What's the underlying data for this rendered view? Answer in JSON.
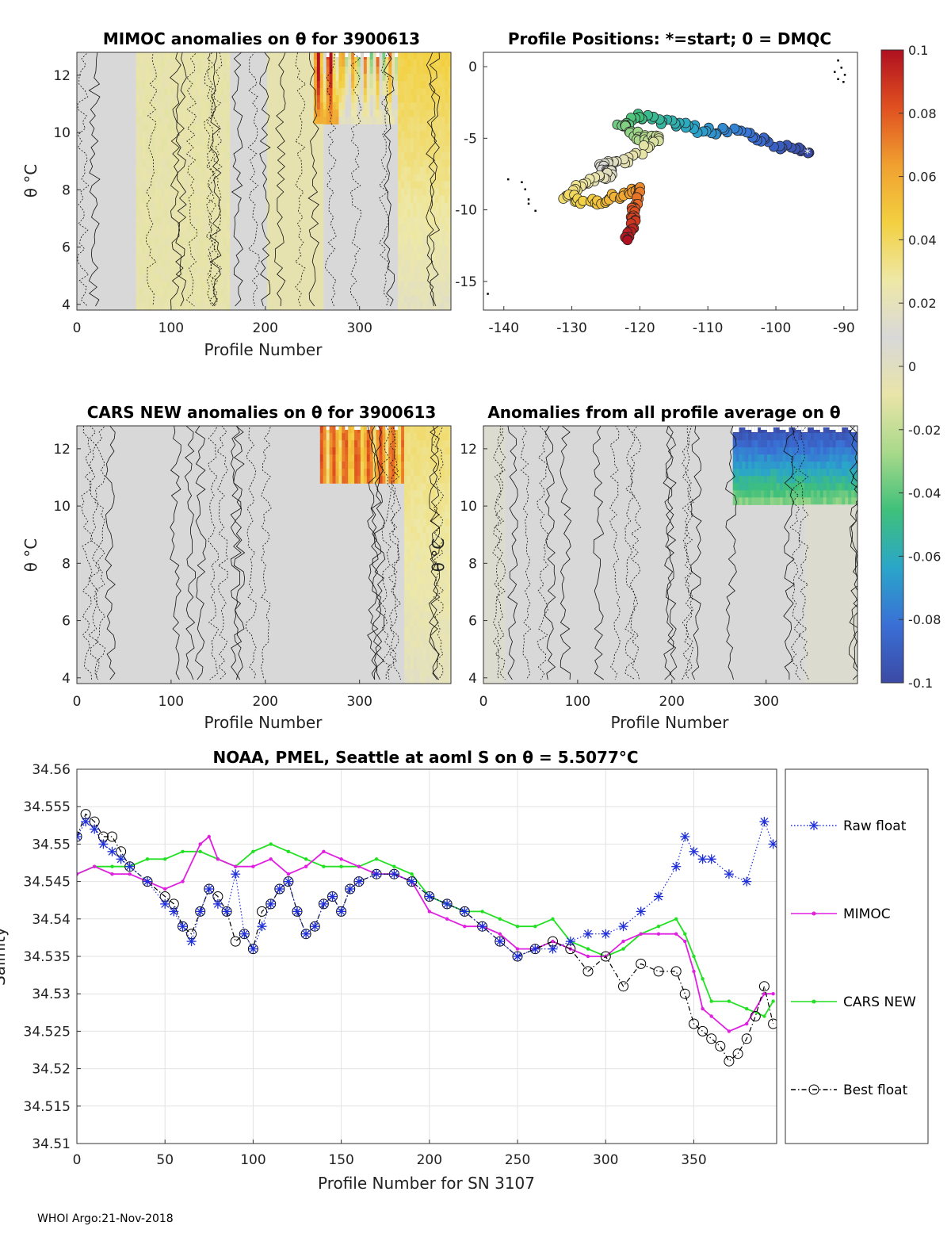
{
  "footer": "WHOI Argo:21-Nov-2018",
  "colors": {
    "raw": "#1f2fd8",
    "mimoc": "#e020e0",
    "cars": "#22e022",
    "best": "#000000",
    "neutral": "#d6d6d6"
  },
  "colormap": {
    "name": "parula-like diverging",
    "stops": [
      "#3b4aa5",
      "#3a6fd6",
      "#2aa6c9",
      "#3fc07a",
      "#a8d98a",
      "#e9e4a8",
      "#d8d8d8",
      "#eee8a6",
      "#f3d040",
      "#f0a030",
      "#e05020",
      "#b01020"
    ],
    "range": [
      -0.1,
      0.1
    ],
    "ticks": [
      "0.1",
      "0.08",
      "0.06",
      "0.04",
      "0.02",
      "0",
      "-0.02",
      "-0.04",
      "-0.06",
      "-0.08",
      "-0.1"
    ]
  },
  "panels": {
    "mimoc": {
      "title": "MIMOC anomalies on θ  for 3900613",
      "xlabel": "Profile Number",
      "ylabel": "θ °C",
      "xticks": [
        "0",
        "100",
        "200",
        "300"
      ],
      "yticks": [
        "12",
        "10",
        "8",
        "6",
        "4"
      ]
    },
    "positions": {
      "title": "Profile Positions: *=start; 0 = DMQC",
      "xticks": [
        "-140",
        "-130",
        "-120",
        "-110",
        "-100",
        "-90"
      ],
      "yticks": [
        "0",
        "-5",
        "-10",
        "-15"
      ]
    },
    "cars": {
      "title": "CARS NEW anomalies on θ for 3900613",
      "xlabel": "Profile Number",
      "ylabel": "θ °C",
      "xticks": [
        "0",
        "100",
        "200",
        "300"
      ],
      "yticks": [
        "12",
        "10",
        "8",
        "6",
        "4"
      ]
    },
    "avg": {
      "title": "Anomalies from all profile average on θ",
      "xlabel": "Profile Number",
      "ylabel": "θ °C",
      "xticks": [
        "0",
        "100",
        "200",
        "300"
      ],
      "yticks": [
        "12",
        "10",
        "8",
        "6",
        "4"
      ]
    }
  },
  "chart_data": {
    "type": "line",
    "title": "NOAA, PMEL, Seattle at aoml S on θ = 5.5077°C",
    "xlabel": "Profile Number for SN 3107",
    "ylabel": "Salinity",
    "xlim": [
      0,
      397
    ],
    "ylim": [
      34.51,
      34.56
    ],
    "xticks": [
      "0",
      "50",
      "100",
      "150",
      "200",
      "250",
      "300",
      "350"
    ],
    "yticks": [
      "34.56",
      "34.555",
      "34.55",
      "34.545",
      "34.54",
      "34.535",
      "34.53",
      "34.525",
      "34.52",
      "34.515",
      "34.51"
    ],
    "grid": true,
    "legend": "outside-right",
    "series": [
      {
        "name": "Raw float",
        "marker": "asterisk",
        "line": "dotted",
        "x": [
          0,
          5,
          10,
          15,
          20,
          25,
          30,
          40,
          50,
          55,
          60,
          65,
          70,
          75,
          80,
          85,
          90,
          95,
          100,
          105,
          110,
          115,
          120,
          125,
          130,
          135,
          140,
          145,
          150,
          155,
          160,
          170,
          180,
          190,
          200,
          210,
          220,
          230,
          240,
          250,
          260,
          270,
          280,
          290,
          300,
          310,
          320,
          330,
          340,
          345,
          350,
          355,
          360,
          370,
          380,
          390,
          395
        ],
        "y": [
          34.551,
          34.553,
          34.552,
          34.55,
          34.549,
          34.548,
          34.547,
          34.545,
          34.542,
          34.541,
          34.539,
          34.537,
          34.541,
          34.544,
          34.542,
          34.541,
          34.546,
          34.538,
          34.536,
          34.539,
          34.542,
          34.544,
          34.545,
          34.541,
          34.538,
          34.539,
          34.542,
          34.543,
          34.541,
          34.544,
          34.545,
          34.546,
          34.546,
          34.545,
          34.543,
          34.542,
          34.541,
          34.539,
          34.537,
          34.535,
          34.536,
          34.536,
          34.537,
          34.538,
          34.538,
          34.539,
          34.541,
          34.543,
          34.547,
          34.551,
          34.549,
          34.548,
          34.548,
          34.546,
          34.545,
          34.553,
          34.55
        ]
      },
      {
        "name": "MIMOC",
        "marker": "dot",
        "line": "solid",
        "x": [
          0,
          10,
          20,
          30,
          40,
          50,
          60,
          70,
          75,
          80,
          90,
          100,
          110,
          120,
          130,
          140,
          150,
          160,
          170,
          180,
          190,
          200,
          210,
          220,
          230,
          240,
          250,
          260,
          270,
          280,
          290,
          300,
          310,
          320,
          330,
          340,
          345,
          350,
          355,
          360,
          370,
          380,
          390,
          395
        ],
        "y": [
          34.546,
          34.547,
          34.546,
          34.546,
          34.545,
          34.544,
          34.545,
          34.55,
          34.551,
          34.548,
          34.547,
          34.547,
          34.548,
          34.546,
          34.547,
          34.549,
          34.548,
          34.547,
          34.546,
          34.546,
          34.545,
          34.541,
          34.54,
          34.539,
          34.539,
          34.538,
          34.536,
          34.536,
          34.537,
          34.536,
          34.535,
          34.535,
          34.537,
          34.538,
          34.538,
          34.538,
          34.537,
          34.533,
          34.528,
          34.527,
          34.525,
          34.526,
          34.53,
          34.53
        ]
      },
      {
        "name": "CARS NEW",
        "marker": "dot",
        "line": "solid",
        "x": [
          0,
          10,
          20,
          30,
          40,
          50,
          60,
          70,
          80,
          90,
          100,
          110,
          120,
          130,
          140,
          150,
          160,
          170,
          180,
          190,
          200,
          210,
          220,
          230,
          240,
          250,
          260,
          270,
          280,
          290,
          300,
          310,
          320,
          330,
          340,
          345,
          350,
          355,
          360,
          370,
          380,
          390,
          395
        ],
        "y": [
          34.546,
          34.547,
          34.547,
          34.547,
          34.548,
          34.548,
          34.549,
          34.549,
          34.548,
          34.547,
          34.549,
          34.55,
          34.549,
          34.548,
          34.547,
          34.547,
          34.547,
          34.548,
          34.547,
          34.546,
          34.543,
          34.542,
          34.541,
          34.541,
          34.54,
          34.539,
          34.539,
          34.54,
          34.537,
          34.536,
          34.535,
          34.536,
          34.538,
          34.539,
          34.54,
          34.538,
          34.535,
          34.532,
          34.529,
          34.529,
          34.528,
          34.527,
          34.529
        ]
      },
      {
        "name": "Best float",
        "marker": "circle",
        "line": "dashdot",
        "x": [
          0,
          5,
          10,
          15,
          20,
          25,
          30,
          40,
          50,
          55,
          60,
          65,
          70,
          75,
          80,
          85,
          90,
          95,
          100,
          105,
          110,
          115,
          120,
          125,
          130,
          135,
          140,
          145,
          150,
          155,
          160,
          170,
          180,
          190,
          200,
          210,
          220,
          230,
          240,
          250,
          260,
          270,
          280,
          290,
          300,
          310,
          320,
          330,
          340,
          345,
          350,
          355,
          360,
          365,
          370,
          375,
          380,
          385,
          390,
          395
        ],
        "y": [
          34.551,
          34.554,
          34.553,
          34.551,
          34.551,
          34.549,
          34.547,
          34.545,
          34.543,
          34.542,
          34.539,
          34.538,
          34.541,
          34.544,
          34.543,
          34.541,
          34.537,
          34.538,
          34.536,
          34.541,
          34.542,
          34.544,
          34.545,
          34.541,
          34.538,
          34.539,
          34.542,
          34.543,
          34.541,
          34.544,
          34.545,
          34.546,
          34.546,
          34.545,
          34.543,
          34.542,
          34.541,
          34.539,
          34.537,
          34.535,
          34.536,
          34.537,
          34.536,
          34.533,
          34.535,
          34.531,
          34.534,
          34.533,
          34.533,
          34.53,
          34.526,
          34.525,
          34.524,
          34.523,
          34.521,
          34.522,
          34.524,
          34.527,
          34.531,
          34.526
        ]
      }
    ]
  }
}
